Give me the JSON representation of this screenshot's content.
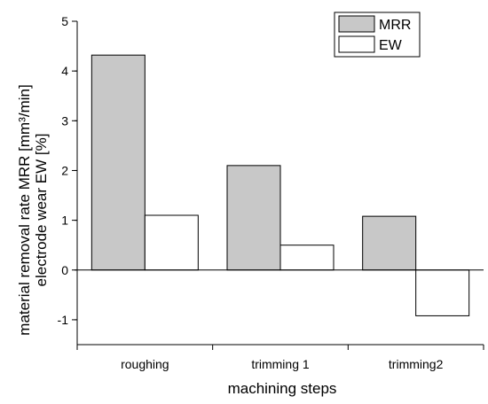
{
  "chart_data": {
    "type": "bar",
    "categories": [
      "roughing",
      "trimming 1",
      "trimming2"
    ],
    "series": [
      {
        "name": "MRR",
        "values": [
          4.32,
          2.1,
          1.08
        ],
        "color": "#c8c8c8"
      },
      {
        "name": "EW",
        "values": [
          1.1,
          0.5,
          -0.92
        ],
        "color": "#ffffff"
      }
    ],
    "xlabel": "machining steps",
    "ylabel_lines": [
      "material removal rate MRR [mm³/min]",
      "electrode wear EW [%]"
    ],
    "ylim": [
      -1.5,
      5
    ],
    "yticks": [
      -1,
      0,
      1,
      2,
      3,
      4,
      5
    ],
    "grid": false,
    "legend_position": "top-right"
  }
}
